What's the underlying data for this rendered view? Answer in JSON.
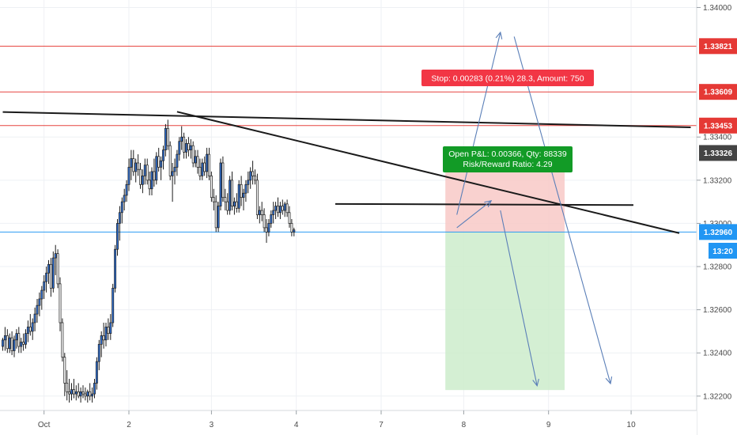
{
  "chart_data": {
    "type": "candlestick",
    "symbol_price_scale": "1.3xxxx",
    "y_range": [
      1.3217,
      1.3402
    ],
    "y_ticks": [
      "1.34000",
      "1.33400",
      "1.33200",
      "1.33000",
      "1.32800",
      "1.32600",
      "1.32400",
      "1.32200"
    ],
    "x_ticks": [
      "Oct",
      "2",
      "3",
      "4",
      "7",
      "8",
      "9",
      "10"
    ],
    "x_tick_slots": [
      18,
      55,
      91,
      128,
      165,
      201,
      238,
      274
    ],
    "grid": true,
    "horizontal_levels": [
      {
        "label": "1.33821",
        "value": 1.33821,
        "color": "#e53935"
      },
      {
        "label": "1.33609",
        "value": 1.33609,
        "color": "#e53935"
      },
      {
        "label": "1.33453",
        "value": 1.33453,
        "color": "#e53935"
      },
      {
        "label": "1.33326",
        "value": 1.33326,
        "color": "#444444"
      },
      {
        "label": "1.32960",
        "value": 1.3296,
        "color": "#2196f3"
      }
    ],
    "time_label": "13:20",
    "position": {
      "entry": 1.3296,
      "stop": 1.33243,
      "target": 1.32228,
      "start_slot": 193,
      "end_slot": 245,
      "stop_text": "Stop: 0.00283 (0.21%) 28.3, Amount: 750",
      "pnl_text_1": "Open P&L: 0.00366, Qty: 88339",
      "pnl_text_2": "Risk/Reward Ratio: 4.29"
    },
    "trend_lines": [
      {
        "from": [
          0,
          1.33516
        ],
        "to": [
          300,
          1.33445
        ]
      },
      {
        "from": [
          76,
          1.33517
        ],
        "to": [
          295,
          1.32955
        ]
      },
      {
        "from": [
          145,
          1.3309
        ],
        "to": [
          275,
          1.33085
        ]
      }
    ],
    "projection_arrows": [
      {
        "from": [
          198,
          1.3304
        ],
        "to": [
          217,
          1.33885
        ]
      },
      {
        "from": [
          198,
          1.3298
        ],
        "to": [
          213,
          1.33105
        ]
      },
      {
        "from": [
          217,
          1.3306
        ],
        "to": [
          233,
          1.32248
        ]
      },
      {
        "from": [
          223,
          1.33865
        ],
        "to": [
          265,
          1.32258
        ]
      }
    ],
    "candles": [
      [
        1.3243,
        1.3247,
        1.3241,
        1.3246
      ],
      [
        1.3246,
        1.3252,
        1.3241,
        1.3248
      ],
      [
        1.3248,
        1.3251,
        1.324,
        1.3242
      ],
      [
        1.3242,
        1.3249,
        1.324,
        1.3247
      ],
      [
        1.3247,
        1.325,
        1.3239,
        1.3241
      ],
      [
        1.3241,
        1.3248,
        1.3238,
        1.3246
      ],
      [
        1.3246,
        1.3251,
        1.3242,
        1.3249
      ],
      [
        1.3249,
        1.3252,
        1.324,
        1.3243
      ],
      [
        1.3243,
        1.3247,
        1.324,
        1.3245
      ],
      [
        1.3245,
        1.3249,
        1.3241,
        1.3244
      ],
      [
        1.3244,
        1.3251,
        1.3242,
        1.3249
      ],
      [
        1.3249,
        1.3255,
        1.3245,
        1.3252
      ],
      [
        1.3252,
        1.3258,
        1.3248,
        1.325
      ],
      [
        1.325,
        1.3256,
        1.3246,
        1.3254
      ],
      [
        1.3254,
        1.3261,
        1.325,
        1.3258
      ],
      [
        1.3258,
        1.3265,
        1.3254,
        1.3262
      ],
      [
        1.3262,
        1.3268,
        1.3257,
        1.3265
      ],
      [
        1.3265,
        1.3271,
        1.326,
        1.3269
      ],
      [
        1.3269,
        1.3276,
        1.3265,
        1.3273
      ],
      [
        1.3273,
        1.328,
        1.3268,
        1.3277
      ],
      [
        1.3277,
        1.3283,
        1.3272,
        1.3281
      ],
      [
        1.3281,
        1.3284,
        1.3266,
        1.327
      ],
      [
        1.327,
        1.3287,
        1.3268,
        1.3284
      ],
      [
        1.3284,
        1.329,
        1.3276,
        1.3286
      ],
      [
        1.3286,
        1.3288,
        1.327,
        1.3272
      ],
      [
        1.3272,
        1.3275,
        1.325,
        1.3254
      ],
      [
        1.3254,
        1.3256,
        1.3236,
        1.3238
      ],
      [
        1.3238,
        1.324,
        1.322,
        1.3226
      ],
      [
        1.3226,
        1.3232,
        1.3218,
        1.3222
      ],
      [
        1.3222,
        1.3228,
        1.3217,
        1.3221
      ],
      [
        1.3221,
        1.3226,
        1.3218,
        1.3223
      ],
      [
        1.3223,
        1.3228,
        1.3219,
        1.3221
      ],
      [
        1.3221,
        1.3225,
        1.3218,
        1.3222
      ],
      [
        1.3222,
        1.3226,
        1.3219,
        1.322
      ],
      [
        1.322,
        1.3224,
        1.3217,
        1.3222
      ],
      [
        1.3222,
        1.3225,
        1.3219,
        1.3221
      ],
      [
        1.3221,
        1.3224,
        1.3218,
        1.322
      ],
      [
        1.322,
        1.3223,
        1.3217,
        1.3222
      ],
      [
        1.3222,
        1.3226,
        1.3218,
        1.322
      ],
      [
        1.322,
        1.3224,
        1.3217,
        1.3221
      ],
      [
        1.3221,
        1.3228,
        1.3219,
        1.3226
      ],
      [
        1.3226,
        1.3238,
        1.3223,
        1.3236
      ],
      [
        1.3236,
        1.3246,
        1.3232,
        1.3244
      ],
      [
        1.3244,
        1.325,
        1.3238,
        1.3248
      ],
      [
        1.3248,
        1.3254,
        1.3242,
        1.3246
      ],
      [
        1.3246,
        1.3254,
        1.3243,
        1.3252
      ],
      [
        1.3252,
        1.3256,
        1.3246,
        1.3249
      ],
      [
        1.3249,
        1.3258,
        1.3246,
        1.3254
      ],
      [
        1.3254,
        1.3272,
        1.3252,
        1.327
      ],
      [
        1.327,
        1.329,
        1.3268,
        1.3288
      ],
      [
        1.3288,
        1.3302,
        1.3285,
        1.33
      ],
      [
        1.33,
        1.3308,
        1.3292,
        1.3305
      ],
      [
        1.3305,
        1.3312,
        1.33,
        1.331
      ],
      [
        1.331,
        1.3316,
        1.3306,
        1.3313
      ],
      [
        1.3313,
        1.332,
        1.331,
        1.3318
      ],
      [
        1.3318,
        1.333,
        1.3315,
        1.3326
      ],
      [
        1.3326,
        1.3334,
        1.332,
        1.333
      ],
      [
        1.333,
        1.3334,
        1.3322,
        1.3324
      ],
      [
        1.3324,
        1.333,
        1.3319,
        1.3328
      ],
      [
        1.3328,
        1.3332,
        1.3322,
        1.3325
      ],
      [
        1.3325,
        1.3328,
        1.3316,
        1.3318
      ],
      [
        1.3318,
        1.3325,
        1.3314,
        1.3322
      ],
      [
        1.3322,
        1.333,
        1.3318,
        1.3327
      ],
      [
        1.3327,
        1.333,
        1.3318,
        1.332
      ],
      [
        1.332,
        1.3324,
        1.3313,
        1.3316
      ],
      [
        1.3316,
        1.3326,
        1.3313,
        1.3324
      ],
      [
        1.3324,
        1.333,
        1.3317,
        1.332
      ],
      [
        1.332,
        1.3333,
        1.3318,
        1.3331
      ],
      [
        1.3331,
        1.3335,
        1.3324,
        1.3326
      ],
      [
        1.3326,
        1.3331,
        1.332,
        1.3329
      ],
      [
        1.3329,
        1.3336,
        1.3325,
        1.3334
      ],
      [
        1.3334,
        1.3346,
        1.3331,
        1.3344
      ],
      [
        1.3344,
        1.3348,
        1.3334,
        1.3336
      ],
      [
        1.3336,
        1.3338,
        1.332,
        1.3322
      ],
      [
        1.3322,
        1.3328,
        1.331,
        1.3324
      ],
      [
        1.3324,
        1.333,
        1.3318,
        1.3326
      ],
      [
        1.3326,
        1.3334,
        1.3322,
        1.3332
      ],
      [
        1.3332,
        1.334,
        1.3329,
        1.3338
      ],
      [
        1.3338,
        1.3345,
        1.3334,
        1.334
      ],
      [
        1.334,
        1.3342,
        1.333,
        1.3333
      ],
      [
        1.3333,
        1.3339,
        1.333,
        1.3337
      ],
      [
        1.3337,
        1.334,
        1.3331,
        1.3334
      ],
      [
        1.3334,
        1.3339,
        1.333,
        1.3336
      ],
      [
        1.3336,
        1.3338,
        1.3326,
        1.3328
      ],
      [
        1.3328,
        1.3334,
        1.3326,
        1.3331
      ],
      [
        1.3331,
        1.3334,
        1.3323,
        1.3326
      ],
      [
        1.3326,
        1.333,
        1.332,
        1.3322
      ],
      [
        1.3322,
        1.333,
        1.332,
        1.3328
      ],
      [
        1.3328,
        1.3331,
        1.3322,
        1.3324
      ],
      [
        1.3324,
        1.3335,
        1.3321,
        1.3332
      ],
      [
        1.3332,
        1.3335,
        1.332,
        1.3322
      ],
      [
        1.3322,
        1.3324,
        1.331,
        1.3312
      ],
      [
        1.3312,
        1.3316,
        1.3306,
        1.331
      ],
      [
        1.331,
        1.3313,
        1.3296,
        1.3298
      ],
      [
        1.3298,
        1.331,
        1.3296,
        1.3308
      ],
      [
        1.3308,
        1.333,
        1.3306,
        1.3328
      ],
      [
        1.3328,
        1.3331,
        1.331,
        1.3312
      ],
      [
        1.3312,
        1.3316,
        1.3306,
        1.331
      ],
      [
        1.331,
        1.3314,
        1.3304,
        1.3306
      ],
      [
        1.3306,
        1.3322,
        1.3304,
        1.332
      ],
      [
        1.332,
        1.3324,
        1.3306,
        1.3308
      ],
      [
        1.3308,
        1.3312,
        1.3304,
        1.331
      ],
      [
        1.331,
        1.3314,
        1.3305,
        1.3307
      ],
      [
        1.3307,
        1.332,
        1.3305,
        1.3318
      ],
      [
        1.3318,
        1.3322,
        1.3308,
        1.3312
      ],
      [
        1.3312,
        1.3316,
        1.3306,
        1.3314
      ],
      [
        1.3314,
        1.332,
        1.331,
        1.3318
      ],
      [
        1.3318,
        1.3324,
        1.3314,
        1.332
      ],
      [
        1.332,
        1.3326,
        1.3316,
        1.3324
      ],
      [
        1.3324,
        1.3329,
        1.3318,
        1.3322
      ],
      [
        1.3322,
        1.3325,
        1.3318,
        1.332
      ],
      [
        1.332,
        1.3323,
        1.3302,
        1.3304
      ],
      [
        1.3304,
        1.3308,
        1.33,
        1.3306
      ],
      [
        1.3306,
        1.331,
        1.3301,
        1.3304
      ],
      [
        1.3304,
        1.3307,
        1.3296,
        1.3298
      ],
      [
        1.3298,
        1.3302,
        1.3291,
        1.3296
      ],
      [
        1.3296,
        1.3302,
        1.3294,
        1.33
      ],
      [
        1.33,
        1.3306,
        1.3298,
        1.3304
      ],
      [
        1.3304,
        1.331,
        1.33,
        1.3306
      ],
      [
        1.3306,
        1.331,
        1.3302,
        1.3308
      ],
      [
        1.3308,
        1.3312,
        1.3303,
        1.3305
      ],
      [
        1.3305,
        1.331,
        1.3302,
        1.3308
      ],
      [
        1.3308,
        1.3311,
        1.3304,
        1.3306
      ],
      [
        1.3306,
        1.331,
        1.3303,
        1.3309
      ],
      [
        1.3309,
        1.3311,
        1.3303,
        1.3305
      ],
      [
        1.3305,
        1.3308,
        1.3298,
        1.33
      ],
      [
        1.33,
        1.3302,
        1.3294,
        1.3296
      ],
      [
        1.3296,
        1.3298,
        1.3294,
        1.3297
      ]
    ]
  },
  "axis": {
    "y_ticks": [
      "1.34000",
      "1.33400",
      "1.33200",
      "1.33000",
      "1.32800",
      "1.32600",
      "1.32400",
      "1.32200"
    ],
    "x_ticks": [
      "Oct",
      "2",
      "3",
      "4",
      "7",
      "8",
      "9",
      "10"
    ]
  },
  "colors": {
    "up": "#2f6fd1",
    "down": "#ffffff",
    "candle_outline": "#1c1c1c",
    "stop_zone": "#f8c9c7",
    "target_zone": "#cdeccb",
    "stop_label_bg": "#f23645",
    "pnl_label_bg": "#129b26",
    "grid": "#eef0f4"
  }
}
